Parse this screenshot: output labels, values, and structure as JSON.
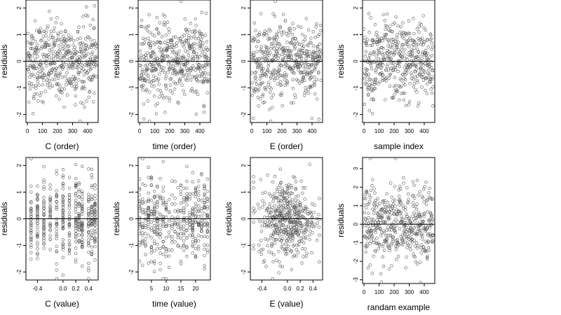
{
  "figure": {
    "type": "scatter-grid",
    "panels_count": 8
  },
  "chart_data": [
    {
      "type": "scatter",
      "xlabel": "C (order)",
      "ylabel": "residuals",
      "xlim": [
        -10,
        470
      ],
      "ylim": [
        -2.3,
        2.3
      ],
      "xticks": [
        0,
        100,
        200,
        300,
        400
      ],
      "xtick_labels": [
        "0",
        "100",
        "200",
        "300",
        "400"
      ],
      "yticks": [
        -2,
        -1,
        0,
        1,
        2
      ],
      "ytick_labels": [
        "-2",
        "-1",
        "0",
        "1",
        "2"
      ],
      "mode": "order",
      "ref_line": 0
    },
    {
      "type": "scatter",
      "xlabel": "time (order)",
      "ylabel": "residuals",
      "xlim": [
        -10,
        470
      ],
      "ylim": [
        -2.3,
        2.3
      ],
      "xticks": [
        0,
        100,
        200,
        300,
        400
      ],
      "xtick_labels": [
        "0",
        "100",
        "200",
        "300",
        "400"
      ],
      "yticks": [
        -2,
        -1,
        0,
        1,
        2
      ],
      "ytick_labels": [
        "-2",
        "-1",
        "0",
        "1",
        "2"
      ],
      "mode": "order",
      "ref_line": 0
    },
    {
      "type": "scatter",
      "xlabel": "E (order)",
      "ylabel": "residuals",
      "xlim": [
        -10,
        470
      ],
      "ylim": [
        -2.3,
        2.3
      ],
      "xticks": [
        0,
        100,
        200,
        300,
        400
      ],
      "xtick_labels": [
        "0",
        "100",
        "200",
        "300",
        "400"
      ],
      "yticks": [
        -2,
        -1,
        0,
        1,
        2
      ],
      "ytick_labels": [
        "-2",
        "-1",
        "0",
        "1",
        "2"
      ],
      "mode": "order",
      "ref_line": 0
    },
    {
      "type": "scatter",
      "xlabel": "sample index",
      "ylabel": "residuals",
      "xlim": [
        -10,
        470
      ],
      "ylim": [
        -2.3,
        2.3
      ],
      "xticks": [
        0,
        100,
        200,
        300,
        400
      ],
      "xtick_labels": [
        "0",
        "100",
        "200",
        "300",
        "400"
      ],
      "yticks": [
        -2,
        -1,
        0,
        1,
        2
      ],
      "ytick_labels": [
        "-2",
        "-1",
        "0",
        "1",
        "2"
      ],
      "mode": "order",
      "ref_line": 0
    },
    {
      "type": "scatter",
      "xlabel": "C (value)",
      "ylabel": "residuals",
      "xlim": [
        -0.58,
        0.55
      ],
      "ylim": [
        -2.3,
        2.3
      ],
      "xticks": [
        -0.4,
        0,
        0.2,
        0.4
      ],
      "xtick_labels": [
        "-0.4",
        "0.0",
        "0.2",
        "0.4"
      ],
      "yticks": [
        -2,
        -1,
        0,
        1,
        2
      ],
      "ytick_labels": [
        "-2",
        "-1",
        "0",
        "1",
        "2"
      ],
      "mode": "discrete",
      "levels": [
        -0.5,
        -0.4,
        -0.3,
        -0.2,
        -0.1,
        0,
        0.1,
        0.2,
        0.25,
        0.3,
        0.4,
        0.45,
        0.5
      ],
      "ref_line": 0
    },
    {
      "type": "scatter",
      "xlabel": "time (value)",
      "ylabel": "residuals",
      "xlim": [
        0.5,
        25
      ],
      "ylim": [
        -2.3,
        2.3
      ],
      "xticks": [
        5,
        10,
        15,
        20
      ],
      "xtick_labels": [
        "5",
        "10",
        "15",
        "20"
      ],
      "yticks": [
        -2,
        -1,
        0,
        1,
        2
      ],
      "ytick_labels": [
        "-2",
        "-1",
        "0",
        "1",
        "2"
      ],
      "mode": "discrete",
      "levels": [
        1,
        2,
        3,
        4,
        5,
        6,
        7,
        8,
        9,
        10,
        11,
        12,
        13,
        14,
        15,
        16,
        17,
        18,
        19,
        20,
        21,
        22,
        23,
        24
      ],
      "ref_line": 0
    },
    {
      "type": "scatter",
      "xlabel": "E (value)",
      "ylabel": "residuals",
      "xlim": [
        -0.58,
        0.55
      ],
      "ylim": [
        -2.3,
        2.3
      ],
      "xticks": [
        -0.4,
        0,
        0.2,
        0.4
      ],
      "xtick_labels": [
        "-0.4",
        "0.0",
        "0.2",
        "0.4"
      ],
      "yticks": [
        -2,
        -1,
        0,
        1,
        2
      ],
      "ytick_labels": [
        "-2",
        "-1",
        "0",
        "1",
        "2"
      ],
      "mode": "continuous-centered",
      "ref_line": 0
    },
    {
      "type": "scatter",
      "xlabel": "randam example",
      "ylabel": "residuals",
      "xlim": [
        -10,
        470
      ],
      "ylim": [
        -3.2,
        3.6
      ],
      "xticks": [
        0,
        100,
        200,
        300,
        400
      ],
      "xtick_labels": [
        "0",
        "100",
        "200",
        "300",
        "400"
      ],
      "yticks": [
        -3,
        -2,
        -1,
        0,
        1,
        2,
        3
      ],
      "ytick_labels": [
        "-3",
        "-2",
        "-1",
        "0",
        "1",
        "2",
        "3"
      ],
      "mode": "order",
      "ref_line": 0
    }
  ],
  "style": {
    "point_color": "#555555",
    "axis_color": "#000000",
    "background": "#ffffff"
  }
}
